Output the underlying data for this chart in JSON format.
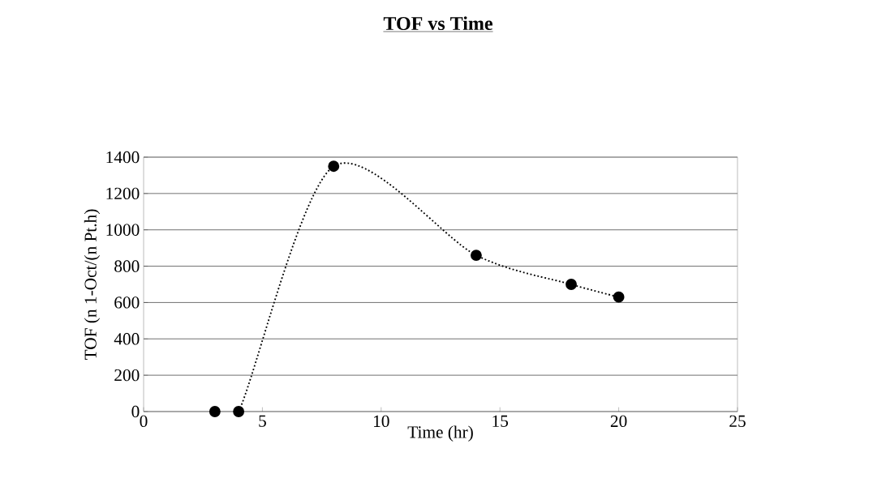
{
  "chart_data": {
    "type": "line",
    "title": "TOF vs Time",
    "xlabel": "Time (hr)",
    "ylabel": "TOF (n 1-Oct/(n Pt.h)",
    "x": [
      3,
      4,
      8,
      14,
      18,
      20
    ],
    "series": [
      {
        "color": "#000000",
        "values": [
          0,
          0,
          1350,
          860,
          700,
          630
        ]
      }
    ],
    "marker": "circle",
    "line_style": "dotted",
    "xlim": [
      0,
      25
    ],
    "ylim": [
      0,
      1400
    ],
    "xticks": [
      0,
      5,
      10,
      15,
      20,
      25
    ],
    "yticks": [
      0,
      200,
      400,
      600,
      800,
      1000,
      1200,
      1400
    ],
    "grid": "y"
  }
}
